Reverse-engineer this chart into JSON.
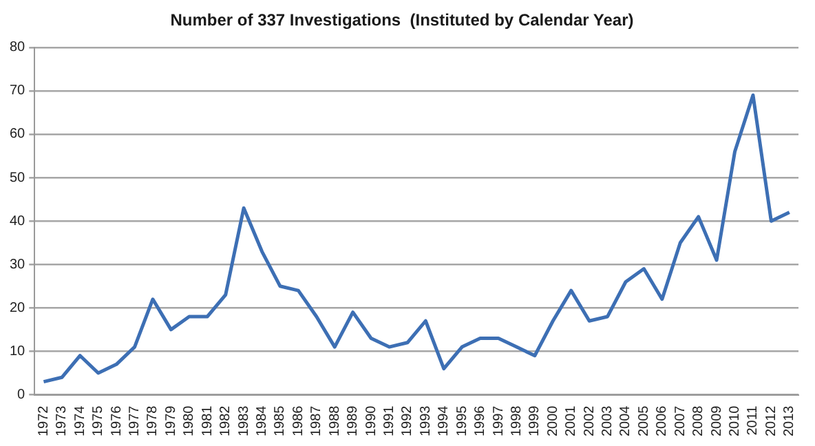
{
  "chart_data": {
    "type": "line",
    "title": "Number of 337 Investigations  (Instituted by Calendar Year)",
    "categories": [
      "1972",
      "1973",
      "1974",
      "1975",
      "1976",
      "1977",
      "1978",
      "1979",
      "1980",
      "1981",
      "1982",
      "1983",
      "1984",
      "1985",
      "1986",
      "1987",
      "1988",
      "1989",
      "1990",
      "1991",
      "1992",
      "1993",
      "1994",
      "1995",
      "1996",
      "1997",
      "1998",
      "1999",
      "2000",
      "2001",
      "2002",
      "2003",
      "2004",
      "2005",
      "2006",
      "2007",
      "2008",
      "2009",
      "2010",
      "2011",
      "2012",
      "2013"
    ],
    "series": [
      {
        "color": "#3d6fb4",
        "values": [
          3,
          4,
          9,
          5,
          7,
          11,
          22,
          15,
          18,
          18,
          23,
          43,
          33,
          25,
          24,
          18,
          11,
          19,
          13,
          11,
          12,
          17,
          6,
          11,
          13,
          13,
          11,
          9,
          17,
          24,
          17,
          18,
          26,
          29,
          22,
          35,
          41,
          31,
          56,
          69,
          40,
          42
        ]
      }
    ],
    "ylim": [
      0,
      80
    ],
    "yticks": [
      0,
      10,
      20,
      30,
      40,
      50,
      60,
      70,
      80
    ],
    "grid": "y",
    "legend": false,
    "marker": "none",
    "line_style": "solid"
  }
}
